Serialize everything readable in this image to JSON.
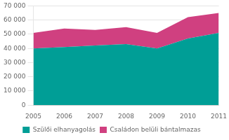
{
  "chart_data": {
    "type": "area",
    "stacked": true,
    "x": [
      2005,
      2006,
      2007,
      2008,
      2009,
      2010,
      2011
    ],
    "series": [
      {
        "name": "Szülői elhanyagolás",
        "color": "#009E96",
        "values": [
          40000,
          41000,
          42000,
          43000,
          40000,
          47000,
          51000
        ]
      },
      {
        "name": "Családon belüli bántalmazas",
        "color": "#D04080",
        "values": [
          11000,
          13000,
          11000,
          12000,
          11000,
          15000,
          14000
        ]
      }
    ],
    "xlim": [
      2005,
      2011
    ],
    "xticks": [
      2005,
      2006,
      2007,
      2008,
      2009,
      2010,
      2011
    ],
    "ylim": [
      0,
      70000
    ],
    "yticks": [
      0,
      {
        "value": 10000,
        "label": "10 000"
      },
      {
        "value": 20000,
        "label": "20 000"
      },
      {
        "value": 30000,
        "label": "30 000"
      },
      {
        "value": 40000,
        "label": "40 000"
      },
      {
        "value": 50000,
        "label": "50 000"
      },
      {
        "value": 60000,
        "label": "60 000"
      },
      {
        "value": 70000,
        "label": "70 000"
      }
    ],
    "grid": "y",
    "legend": "bottom"
  }
}
